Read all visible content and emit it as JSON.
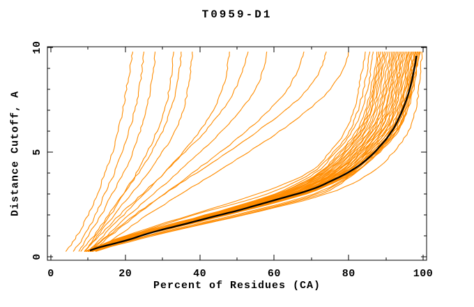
{
  "chart_data": {
    "type": "line",
    "title": "T0959-D1",
    "xlabel": "Percent of Residues (CA)",
    "ylabel": "Distance Cutoff, A",
    "xlim": [
      0,
      100
    ],
    "ylim": [
      0,
      10
    ],
    "grid": false,
    "legend": "none",
    "x_major_ticks": [
      0,
      20,
      40,
      60,
      80,
      100
    ],
    "x_minor_ticks": [
      10,
      30,
      50,
      70,
      90
    ],
    "x_tick_labels": [
      "0",
      "20",
      "40",
      "60",
      "80",
      "100"
    ],
    "y_major_ticks": [
      0,
      5,
      10
    ],
    "y_minor_ticks": [
      1,
      2,
      3,
      4,
      6,
      7,
      8,
      9
    ],
    "y_tick_labels": [
      "0",
      "5",
      "10"
    ],
    "colors": {
      "model": "#FF8C00",
      "reference": "#000000",
      "axis": "#000000",
      "background": "#FFFFFF"
    },
    "series": [
      {
        "name": "model-curves",
        "color": "#FF8C00",
        "width": 1.1,
        "y_knots": [
          0.25,
          1,
          2,
          3,
          4,
          5,
          6,
          7,
          8,
          9,
          9.8
        ],
        "curves_x_at_y": [
          [
            9.0,
            20.0,
            37.5,
            55.5,
            69.0,
            75.0,
            79.0,
            81.5,
            82.7,
            83.7,
            84.5
          ],
          [
            9.5,
            21.0,
            38.5,
            58.0,
            70.0,
            76.0,
            80.2,
            82.5,
            84.0,
            85.0,
            85.7
          ],
          [
            9.0,
            20.5,
            41.5,
            60.0,
            71.0,
            76.5,
            81.0,
            83.5,
            85.0,
            86.0,
            86.6
          ],
          [
            10.0,
            21.5,
            42.0,
            60.5,
            72.0,
            77.5,
            82.0,
            84.5,
            86.0,
            87.0,
            87.6
          ],
          [
            9.5,
            21.5,
            42.2,
            61.0,
            72.2,
            78.0,
            82.5,
            85.0,
            86.4,
            87.5,
            88.1
          ],
          [
            10.0,
            22.0,
            42.5,
            61.5,
            72.6,
            78.5,
            83.0,
            85.4,
            86.8,
            88.0,
            88.6
          ],
          [
            9.0,
            21.0,
            42.6,
            61.8,
            73.0,
            79.0,
            83.4,
            85.9,
            87.2,
            88.4,
            89.1
          ],
          [
            10.0,
            22.0,
            43.0,
            62.0,
            73.4,
            79.4,
            83.8,
            86.3,
            87.7,
            88.8,
            89.6
          ],
          [
            10.5,
            22.2,
            43.2,
            62.4,
            73.8,
            79.8,
            84.3,
            86.8,
            88.1,
            89.2,
            90.1
          ],
          [
            9.5,
            22.0,
            43.4,
            62.7,
            74.2,
            80.2,
            84.8,
            87.2,
            88.6,
            89.7,
            90.6
          ],
          [
            10.0,
            22.5,
            43.6,
            63.0,
            74.6,
            80.7,
            85.3,
            87.8,
            89.2,
            90.2,
            91.1
          ],
          [
            11.0,
            22.6,
            43.9,
            63.4,
            75.0,
            81.1,
            85.7,
            88.3,
            89.7,
            90.7,
            91.6
          ],
          [
            10.0,
            22.7,
            44.1,
            63.7,
            75.4,
            81.6,
            86.2,
            88.7,
            90.1,
            91.2,
            92.0
          ],
          [
            10.5,
            22.8,
            44.3,
            64.0,
            75.7,
            81.9,
            86.5,
            89.0,
            90.5,
            91.6,
            92.4
          ],
          [
            10.0,
            22.9,
            44.5,
            64.3,
            76.1,
            82.3,
            87.0,
            89.5,
            91.0,
            92.0,
            92.8
          ],
          [
            11.0,
            23.0,
            44.7,
            64.6,
            76.4,
            82.7,
            87.4,
            89.9,
            91.3,
            92.4,
            93.2
          ],
          [
            10.0,
            23.0,
            44.9,
            64.9,
            76.8,
            83.0,
            87.7,
            90.3,
            91.7,
            92.8,
            93.6
          ],
          [
            10.5,
            23.1,
            45.1,
            65.1,
            77.1,
            83.4,
            88.1,
            90.7,
            92.1,
            93.2,
            94.0
          ],
          [
            10.0,
            23.2,
            45.3,
            65.4,
            77.5,
            83.7,
            88.5,
            91.0,
            92.5,
            93.6,
            94.4
          ],
          [
            11.0,
            23.3,
            45.5,
            65.7,
            77.8,
            84.1,
            88.9,
            91.4,
            92.9,
            93.9,
            94.8
          ],
          [
            10.0,
            23.4,
            45.6,
            66.0,
            78.1,
            84.4,
            89.2,
            91.8,
            93.3,
            94.3,
            95.2
          ],
          [
            10.5,
            23.5,
            45.8,
            66.2,
            78.4,
            84.8,
            89.6,
            92.2,
            93.6,
            94.7,
            95.6
          ],
          [
            11.0,
            23.5,
            46.0,
            66.5,
            78.7,
            85.1,
            90.0,
            92.6,
            94.0,
            95.1,
            96.0
          ],
          [
            10.0,
            23.6,
            46.2,
            66.8,
            79.0,
            85.4,
            90.3,
            92.9,
            94.4,
            95.4,
            96.3
          ],
          [
            10.5,
            23.7,
            46.3,
            67.0,
            79.3,
            85.7,
            90.7,
            93.3,
            94.7,
            95.8,
            96.7
          ],
          [
            11.0,
            23.8,
            46.5,
            67.2,
            79.6,
            86.0,
            91.0,
            93.6,
            95.1,
            96.1,
            97.0
          ],
          [
            10.0,
            23.8,
            46.7,
            67.5,
            79.9,
            86.3,
            91.3,
            93.9,
            95.4,
            96.5,
            97.3
          ],
          [
            10.5,
            23.9,
            46.8,
            67.7,
            80.1,
            86.5,
            91.6,
            94.2,
            95.7,
            96.8,
            97.6
          ],
          [
            11.0,
            24.0,
            47.0,
            67.9,
            80.4,
            86.8,
            91.8,
            94.4,
            95.9,
            97.0,
            97.9
          ],
          [
            10.0,
            24.0,
            47.1,
            68.1,
            80.6,
            87.1,
            92.1,
            94.7,
            96.2,
            97.3,
            98.1
          ],
          [
            11.0,
            24.1,
            47.3,
            68.3,
            80.8,
            87.3,
            92.3,
            94.9,
            96.4,
            97.5,
            98.4
          ],
          [
            10.5,
            24.2,
            47.4,
            68.5,
            81.1,
            87.6,
            92.6,
            95.2,
            96.7,
            97.8,
            98.6
          ],
          [
            11.0,
            25.5,
            49.5,
            70.5,
            81.3,
            87.8,
            92.8,
            95.4,
            96.9,
            98.0,
            98.9
          ],
          [
            10.5,
            26.5,
            50.5,
            71.5,
            81.5,
            88.1,
            93.1,
            95.7,
            97.1,
            98.2,
            99.1
          ],
          [
            11.0,
            27.5,
            51.5,
            72.5,
            81.7,
            88.3,
            93.3,
            95.9,
            97.4,
            98.4,
            99.3
          ],
          [
            12.0,
            26.0,
            52.0,
            74.0,
            86.0,
            92.0,
            96.0,
            98.0,
            98.8,
            99.3,
            99.7
          ],
          [
            4.0,
            7.0,
            10.0,
            12.5,
            14.5,
            16.5,
            18.0,
            19.3,
            20.3,
            21.3,
            22.0
          ],
          [
            6.0,
            9.0,
            12.0,
            14.5,
            17.0,
            19.0,
            21.0,
            22.5,
            23.7,
            24.5,
            25.0
          ],
          [
            7.5,
            10.0,
            13.5,
            16.5,
            19.5,
            22.0,
            24.0,
            25.5,
            26.8,
            27.6,
            28.0
          ],
          [
            9.0,
            12.0,
            16.0,
            19.5,
            23.0,
            26.0,
            28.5,
            30.5,
            31.8,
            32.6,
            33.0
          ],
          [
            8.0,
            11.5,
            15.5,
            19.5,
            23.5,
            27.0,
            30.0,
            32.2,
            33.7,
            34.6,
            35.0
          ],
          [
            9.0,
            12.5,
            17.0,
            21.5,
            26.0,
            30.0,
            33.3,
            35.5,
            36.8,
            37.6,
            38.0
          ],
          [
            10.0,
            14.0,
            19.5,
            25.0,
            30.5,
            35.5,
            40.0,
            43.5,
            46.0,
            47.4,
            48.0
          ],
          [
            9.0,
            13.0,
            18.5,
            24.5,
            30.5,
            36.0,
            41.5,
            46.0,
            49.5,
            51.8,
            53.0
          ],
          [
            10.0,
            15.0,
            21.0,
            27.5,
            34.0,
            40.0,
            46.0,
            51.0,
            55.0,
            57.2,
            58.0
          ],
          [
            11.0,
            16.0,
            23.0,
            30.5,
            38.0,
            45.5,
            52.5,
            58.5,
            63.5,
            66.5,
            68.0
          ],
          [
            10.0,
            15.5,
            22.5,
            30.5,
            39.0,
            47.5,
            55.5,
            63.0,
            69.0,
            72.5,
            74.0
          ],
          [
            12.0,
            18.0,
            26.0,
            35.0,
            44.0,
            53.0,
            61.5,
            69.0,
            75.0,
            78.5,
            80.0
          ]
        ]
      },
      {
        "name": "reference-curve",
        "color": "#000000",
        "width": 2.3,
        "points": [
          [
            10.5,
            0.3
          ],
          [
            13,
            0.45
          ],
          [
            17,
            0.63
          ],
          [
            21,
            0.82
          ],
          [
            25,
            1.05
          ],
          [
            30,
            1.3
          ],
          [
            35,
            1.52
          ],
          [
            40,
            1.75
          ],
          [
            45,
            1.98
          ],
          [
            50,
            2.2
          ],
          [
            55,
            2.45
          ],
          [
            60,
            2.7
          ],
          [
            64,
            2.9
          ],
          [
            68,
            3.1
          ],
          [
            72,
            3.35
          ],
          [
            75,
            3.6
          ],
          [
            78,
            3.85
          ],
          [
            81,
            4.15
          ],
          [
            83.5,
            4.45
          ],
          [
            85.5,
            4.75
          ],
          [
            87,
            5.0
          ],
          [
            88.5,
            5.3
          ],
          [
            90,
            5.6
          ],
          [
            91.2,
            5.9
          ],
          [
            92.3,
            6.2
          ],
          [
            93.3,
            6.55
          ],
          [
            94.2,
            6.9
          ],
          [
            95,
            7.25
          ],
          [
            95.7,
            7.6
          ],
          [
            96.3,
            7.95
          ],
          [
            96.9,
            8.35
          ],
          [
            97.3,
            8.7
          ],
          [
            97.7,
            9.05
          ],
          [
            98,
            9.35
          ],
          [
            98.2,
            9.6
          ]
        ]
      }
    ]
  }
}
